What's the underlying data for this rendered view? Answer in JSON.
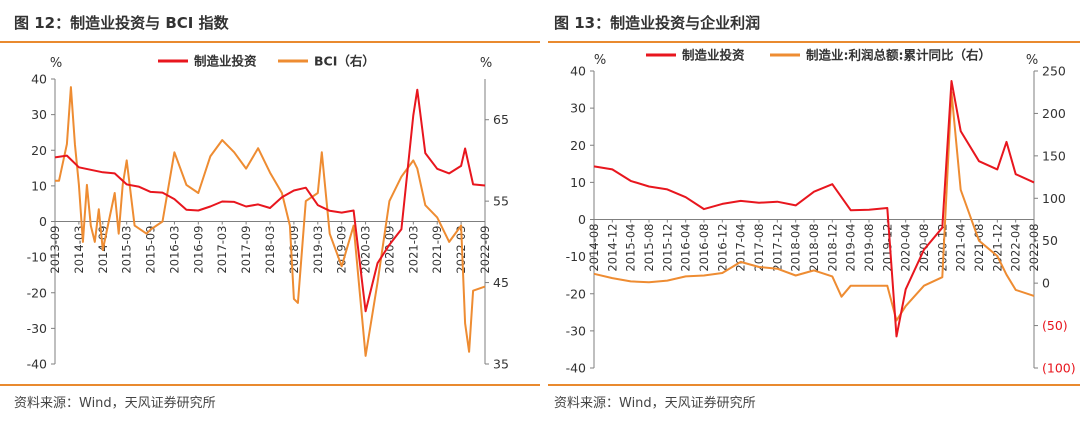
{
  "left": {
    "title": "图 12：制造业投资与 BCI 指数",
    "source": "资料来源：Wind，天风证券研究所",
    "y_unit_left": "%",
    "y_unit_right": "%",
    "colors": {
      "primary": "#e8161e",
      "secondary": "#ee8c32",
      "rule": "#e98a2f"
    },
    "chart_data": {
      "type": "line",
      "title": "",
      "xlabel": "",
      "x_tick_labels": [
        "2013-09",
        "2014-03",
        "2014-09",
        "2015-03",
        "2015-09",
        "2016-03",
        "2016-09",
        "2017-03",
        "2017-09",
        "2018-03",
        "2018-09",
        "2019-03",
        "2019-09",
        "2020-03",
        "2020-09",
        "2021-03",
        "2021-09",
        "2022-03",
        "2022-09"
      ],
      "y_left": {
        "label": "%",
        "range": [
          -40,
          40
        ],
        "ticks": [
          40,
          30,
          20,
          10,
          0,
          -10,
          -20,
          -30,
          -40
        ]
      },
      "y_right": {
        "label": "%",
        "range": [
          35,
          70
        ],
        "ticks": [
          65,
          55,
          45,
          35
        ]
      },
      "legend": {
        "position": "top",
        "entries": [
          "制造业投资",
          "BCI（右）"
        ]
      },
      "grid": false,
      "series": [
        {
          "name": "制造业投资",
          "axis": "left",
          "color": "#e8161e",
          "points": [
            [
              "2013-09",
              18.0
            ],
            [
              "2013-12",
              18.5
            ],
            [
              "2014-03",
              15.2
            ],
            [
              "2014-06",
              14.5
            ],
            [
              "2014-09",
              13.8
            ],
            [
              "2014-12",
              13.5
            ],
            [
              "2015-03",
              10.4
            ],
            [
              "2015-06",
              9.8
            ],
            [
              "2015-09",
              8.3
            ],
            [
              "2015-12",
              8.1
            ],
            [
              "2016-03",
              6.3
            ],
            [
              "2016-06",
              3.3
            ],
            [
              "2016-09",
              3.1
            ],
            [
              "2016-12",
              4.2
            ],
            [
              "2017-03",
              5.6
            ],
            [
              "2017-06",
              5.5
            ],
            [
              "2017-09",
              4.2
            ],
            [
              "2017-12",
              4.8
            ],
            [
              "2018-03",
              3.8
            ],
            [
              "2018-06",
              6.8
            ],
            [
              "2018-09",
              8.7
            ],
            [
              "2018-12",
              9.5
            ],
            [
              "2019-03",
              4.6
            ],
            [
              "2019-06",
              3.0
            ],
            [
              "2019-09",
              2.5
            ],
            [
              "2019-12",
              3.1
            ],
            [
              "2020-03",
              -25.2
            ],
            [
              "2020-06",
              -11.7
            ],
            [
              "2020-09",
              -6.5
            ],
            [
              "2020-12",
              -2.2
            ],
            [
              "2021-03",
              29.8
            ],
            [
              "2021-04",
              37.0
            ],
            [
              "2021-06",
              19.2
            ],
            [
              "2021-09",
              14.8
            ],
            [
              "2021-12",
              13.5
            ],
            [
              "2022-03",
              15.6
            ],
            [
              "2022-04",
              20.5
            ],
            [
              "2022-06",
              10.4
            ],
            [
              "2022-09",
              10.1
            ]
          ]
        },
        {
          "name": "BCI（右）",
          "axis": "right",
          "color": "#ee8c32",
          "points": [
            [
              "2013-09",
              57.5
            ],
            [
              "2013-10",
              57.5
            ],
            [
              "2013-12",
              62.0
            ],
            [
              "2014-01",
              69.0
            ],
            [
              "2014-02",
              62.0
            ],
            [
              "2014-03",
              57.0
            ],
            [
              "2014-04",
              50.0
            ],
            [
              "2014-05",
              57.0
            ],
            [
              "2014-06",
              52.0
            ],
            [
              "2014-07",
              50.0
            ],
            [
              "2014-08",
              54.0
            ],
            [
              "2014-09",
              49.0
            ],
            [
              "2014-12",
              56.0
            ],
            [
              "2015-01",
              51.0
            ],
            [
              "2015-02",
              57.0
            ],
            [
              "2015-03",
              60.0
            ],
            [
              "2015-05",
              52.0
            ],
            [
              "2015-08",
              51.0
            ],
            [
              "2015-09",
              51.5
            ],
            [
              "2015-12",
              52.5
            ],
            [
              "2016-03",
              61.0
            ],
            [
              "2016-06",
              57.0
            ],
            [
              "2016-09",
              56.0
            ],
            [
              "2016-12",
              60.5
            ],
            [
              "2017-03",
              62.5
            ],
            [
              "2017-06",
              61.0
            ],
            [
              "2017-09",
              59.0
            ],
            [
              "2017-12",
              61.5
            ],
            [
              "2018-03",
              58.5
            ],
            [
              "2018-06",
              56.0
            ],
            [
              "2018-08",
              52.0
            ],
            [
              "2018-09",
              43.0
            ],
            [
              "2018-10",
              42.5
            ],
            [
              "2018-12",
              55.0
            ],
            [
              "2019-03",
              56.0
            ],
            [
              "2019-04",
              61.0
            ],
            [
              "2019-06",
              51.0
            ],
            [
              "2019-09",
              47.0
            ],
            [
              "2019-12",
              52.0
            ],
            [
              "2020-03",
              36.0
            ],
            [
              "2020-06",
              45.0
            ],
            [
              "2020-09",
              55.0
            ],
            [
              "2020-12",
              58.0
            ],
            [
              "2021-03",
              60.0
            ],
            [
              "2021-04",
              59.0
            ],
            [
              "2021-06",
              54.5
            ],
            [
              "2021-09",
              53.0
            ],
            [
              "2021-12",
              50.0
            ],
            [
              "2022-03",
              52.0
            ],
            [
              "2022-04",
              40.0
            ],
            [
              "2022-05",
              36.5
            ],
            [
              "2022-06",
              44.0
            ],
            [
              "2022-09",
              44.5
            ]
          ]
        }
      ]
    }
  },
  "right": {
    "title": "图 13：制造业投资与企业利润",
    "source": "资料来源：Wind，天风证券研究所",
    "y_unit_left": "%",
    "y_unit_right": "%",
    "colors": {
      "primary": "#e8161e",
      "secondary": "#ee8c32",
      "negative_label": "#e8161e",
      "rule": "#e98a2f"
    },
    "chart_data": {
      "type": "line",
      "title": "",
      "xlabel": "",
      "x_tick_labels": [
        "2014-08",
        "2014-12",
        "2015-04",
        "2015-08",
        "2015-12",
        "2016-04",
        "2016-08",
        "2016-12",
        "2017-04",
        "2017-08",
        "2017-12",
        "2018-04",
        "2018-08",
        "2018-12",
        "2019-04",
        "2019-08",
        "2019-12",
        "2020-04",
        "2020-08",
        "2020-12",
        "2021-04",
        "2021-08",
        "2021-12",
        "2022-04",
        "2022-08"
      ],
      "y_left": {
        "label": "%",
        "range": [
          -40,
          40
        ],
        "ticks": [
          40,
          30,
          20,
          10,
          0,
          -10,
          -20,
          -30,
          -40
        ]
      },
      "y_right": {
        "label": "%",
        "range": [
          -100,
          250
        ],
        "ticks": [
          "250",
          "200",
          "150",
          "100",
          "50",
          "0",
          "(50)",
          "(100)"
        ]
      },
      "legend": {
        "position": "top",
        "entries": [
          "制造业投资",
          "制造业:利润总额:累计同比（右）"
        ]
      },
      "grid": false,
      "series": [
        {
          "name": "制造业投资",
          "axis": "left",
          "color": "#e8161e",
          "points": [
            [
              "2014-08",
              14.3
            ],
            [
              "2014-12",
              13.5
            ],
            [
              "2015-04",
              10.4
            ],
            [
              "2015-08",
              8.9
            ],
            [
              "2015-12",
              8.1
            ],
            [
              "2016-04",
              6.0
            ],
            [
              "2016-08",
              2.8
            ],
            [
              "2016-12",
              4.2
            ],
            [
              "2017-04",
              5.0
            ],
            [
              "2017-08",
              4.5
            ],
            [
              "2017-12",
              4.8
            ],
            [
              "2018-04",
              3.8
            ],
            [
              "2018-08",
              7.5
            ],
            [
              "2018-12",
              9.5
            ],
            [
              "2019-04",
              2.5
            ],
            [
              "2019-08",
              2.6
            ],
            [
              "2019-12",
              3.1
            ],
            [
              "2020-02",
              -31.5
            ],
            [
              "2020-04",
              -18.8
            ],
            [
              "2020-08",
              -8.1
            ],
            [
              "2020-12",
              -2.2
            ],
            [
              "2021-02",
              37.3
            ],
            [
              "2021-04",
              23.8
            ],
            [
              "2021-08",
              15.7
            ],
            [
              "2021-12",
              13.5
            ],
            [
              "2022-02",
              20.9
            ],
            [
              "2022-04",
              12.2
            ],
            [
              "2022-08",
              10.0
            ]
          ]
        },
        {
          "name": "制造业:利润总额:累计同比（右）",
          "axis": "right",
          "color": "#ee8c32",
          "points": [
            [
              "2014-08",
              11.0
            ],
            [
              "2014-12",
              6.0
            ],
            [
              "2015-04",
              2.0
            ],
            [
              "2015-08",
              1.0
            ],
            [
              "2015-12",
              3.0
            ],
            [
              "2016-04",
              8.0
            ],
            [
              "2016-08",
              9.0
            ],
            [
              "2016-12",
              12.0
            ],
            [
              "2017-04",
              25.0
            ],
            [
              "2017-08",
              19.0
            ],
            [
              "2017-12",
              17.0
            ],
            [
              "2018-04",
              9.0
            ],
            [
              "2018-08",
              15.0
            ],
            [
              "2018-12",
              8.0
            ],
            [
              "2019-02",
              -16.0
            ],
            [
              "2019-04",
              -3.0
            ],
            [
              "2019-08",
              -3.0
            ],
            [
              "2019-12",
              -3.0
            ],
            [
              "2020-02",
              -44.0
            ],
            [
              "2020-04",
              -27.0
            ],
            [
              "2020-08",
              -3.0
            ],
            [
              "2020-12",
              7.0
            ],
            [
              "2021-02",
              225.0
            ],
            [
              "2021-04",
              110.0
            ],
            [
              "2021-08",
              50.0
            ],
            [
              "2021-12",
              32.0
            ],
            [
              "2022-02",
              10.0
            ],
            [
              "2022-04",
              -8.0
            ],
            [
              "2022-08",
              -15.0
            ]
          ]
        }
      ]
    }
  }
}
